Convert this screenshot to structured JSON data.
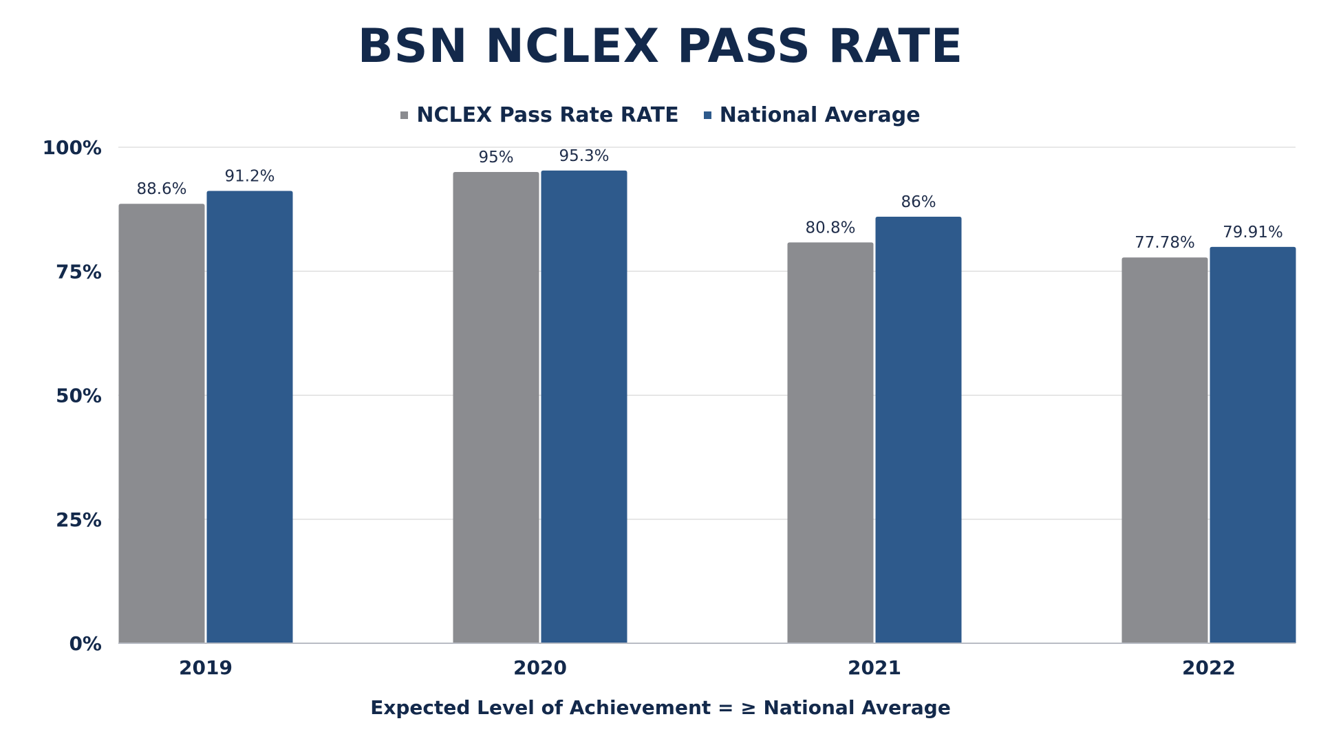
{
  "chart_data": {
    "type": "bar",
    "title": "BSN NCLEX PASS RATE",
    "categories": [
      "2019",
      "2020",
      "2021",
      "2022"
    ],
    "series": [
      {
        "name": "NCLEX Pass Rate RATE",
        "color": "#8b8c90",
        "values": [
          88.6,
          95,
          80.8,
          77.78
        ],
        "labels": [
          "88.6%",
          "95%",
          "80.8%",
          "77.78%"
        ]
      },
      {
        "name": "National Average",
        "color": "#2e5a8c",
        "values": [
          91.2,
          95.3,
          86,
          79.91
        ],
        "labels": [
          "91.2%",
          "95.3%",
          "86%",
          "79.91%"
        ]
      }
    ],
    "ylim": [
      0,
      100
    ],
    "yticks": [
      0,
      25,
      50,
      75,
      100
    ],
    "ytick_labels": [
      "0%",
      "25%",
      "50%",
      "75%",
      "100%"
    ],
    "grid": true,
    "legend": "top",
    "xlabel": "Expected Level of Achievement = ≥ National Average",
    "ylabel": ""
  }
}
